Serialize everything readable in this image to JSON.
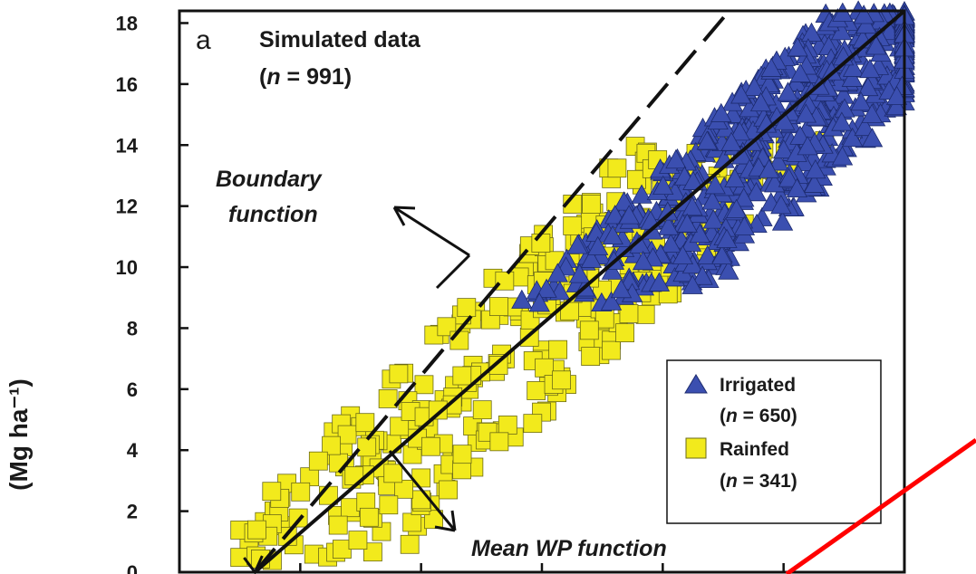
{
  "chart_data": {
    "type": "scatter",
    "panel_letter": "a",
    "ylabel": "(Mg ha⁻¹)",
    "ylim": [
      0,
      18.4
    ],
    "xlim": [
      0,
      24
    ],
    "yticks": [
      0,
      2,
      4,
      6,
      8,
      10,
      12,
      14,
      16,
      18
    ],
    "xtick_marks": [
      4,
      8,
      12,
      16,
      20,
      24
    ],
    "text_annotations": {
      "simulated_title": "Simulated data",
      "simulated_n": "(n = 991)",
      "boundary_line1": "Boundary",
      "boundary_line2": "function",
      "mean_wp": "Mean WP function"
    },
    "legend": {
      "position": "lower-right",
      "entries": [
        {
          "label": "Irrigated",
          "n_label": "(n = 650)",
          "marker": "triangle",
          "color": "#3b4fb0"
        },
        {
          "label": "Rainfed",
          "n_label": "(n = 341)",
          "marker": "square",
          "color": "#f2ea1c"
        }
      ]
    },
    "lines": [
      {
        "name": "Boundary function",
        "style": "dashed",
        "x": [
          2.5,
          18.2
        ],
        "y": [
          0,
          18.4
        ]
      },
      {
        "name": "Mean WP function",
        "style": "solid",
        "x": [
          2.5,
          24
        ],
        "y": [
          0,
          18.4
        ]
      }
    ],
    "clusters": [
      {
        "series": "Rainfed",
        "x_range": [
          2.0,
          23.5
        ],
        "y_range": [
          0.3,
          14.3
        ],
        "n": 341
      },
      {
        "series": "Irrigated",
        "x_range": [
          9.0,
          24.0
        ],
        "y_range": [
          8.7,
          18.4
        ],
        "n": 650
      }
    ],
    "colors": {
      "irrigated": "#3b4fb0",
      "rainfed": "#f2ea1c",
      "annotation_red": "#ff0000"
    }
  }
}
